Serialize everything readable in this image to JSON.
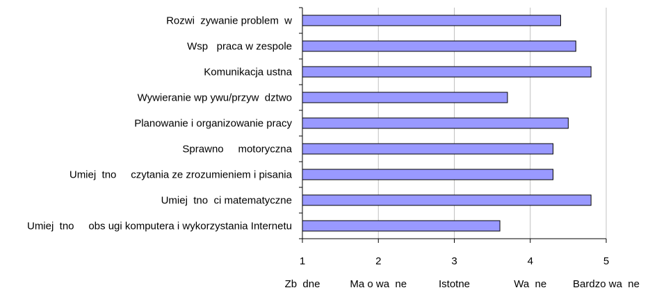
{
  "chart_data": {
    "type": "bar",
    "orientation": "horizontal",
    "categories": [
      "Rozwi  zywanie problem  w",
      "Wsp   praca w zespole",
      "Komunikacja ustna",
      "Wywieranie wp ywu/przyw  dztwo",
      "Planowanie i organizowanie pracy",
      "Sprawno     motoryczna",
      "Umiej  tno     czytania ze zrozumieniem i pisania",
      "Umiej  tno  ci matematyczne",
      "Umiej  tno     obs ugi komputera i wykorzystania Internetu"
    ],
    "values": [
      4.4,
      4.6,
      4.8,
      3.7,
      4.5,
      4.3,
      4.3,
      4.8,
      3.6
    ],
    "xlim": [
      1,
      5
    ],
    "x_ticks": [
      "1",
      "2",
      "3",
      "4",
      "5"
    ],
    "x_scale_labels": [
      "Zb  dne",
      "Ma o wa  ne",
      "Istotne",
      "Wa  ne",
      "Bardzo wa  ne"
    ],
    "grid": "vertical",
    "bar_color": "#9999ff",
    "bar_edge_color": "#000000",
    "gridline_color": "#c0c0c0"
  }
}
